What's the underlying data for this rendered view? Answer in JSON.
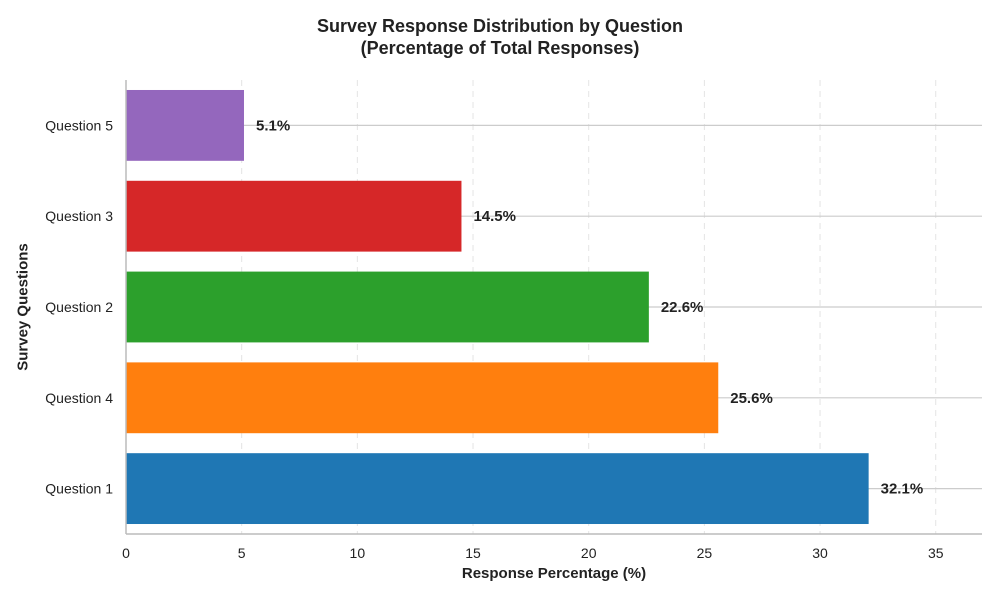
{
  "chart_data": {
    "type": "bar",
    "orientation": "horizontal",
    "title": "Survey Response Distribution by Question",
    "subtitle": "(Percentage of Total Responses)",
    "xlabel": "Response Percentage (%)",
    "ylabel": "Survey Questions",
    "categories": [
      "Question 1",
      "Question 4",
      "Question 2",
      "Question 3",
      "Question 5"
    ],
    "values": [
      32.1,
      25.6,
      22.6,
      14.5,
      5.1
    ],
    "data_labels": [
      "32.1%",
      "25.6%",
      "22.6%",
      "14.5%",
      "5.1%"
    ],
    "colors": [
      "#1f77b4",
      "#ff7f0e",
      "#2ca02c",
      "#d62728",
      "#9467bd"
    ],
    "xlim": [
      0,
      37
    ],
    "xticks": [
      0,
      5,
      10,
      15,
      20,
      25,
      30,
      35
    ],
    "grid": true,
    "legend": "none"
  }
}
